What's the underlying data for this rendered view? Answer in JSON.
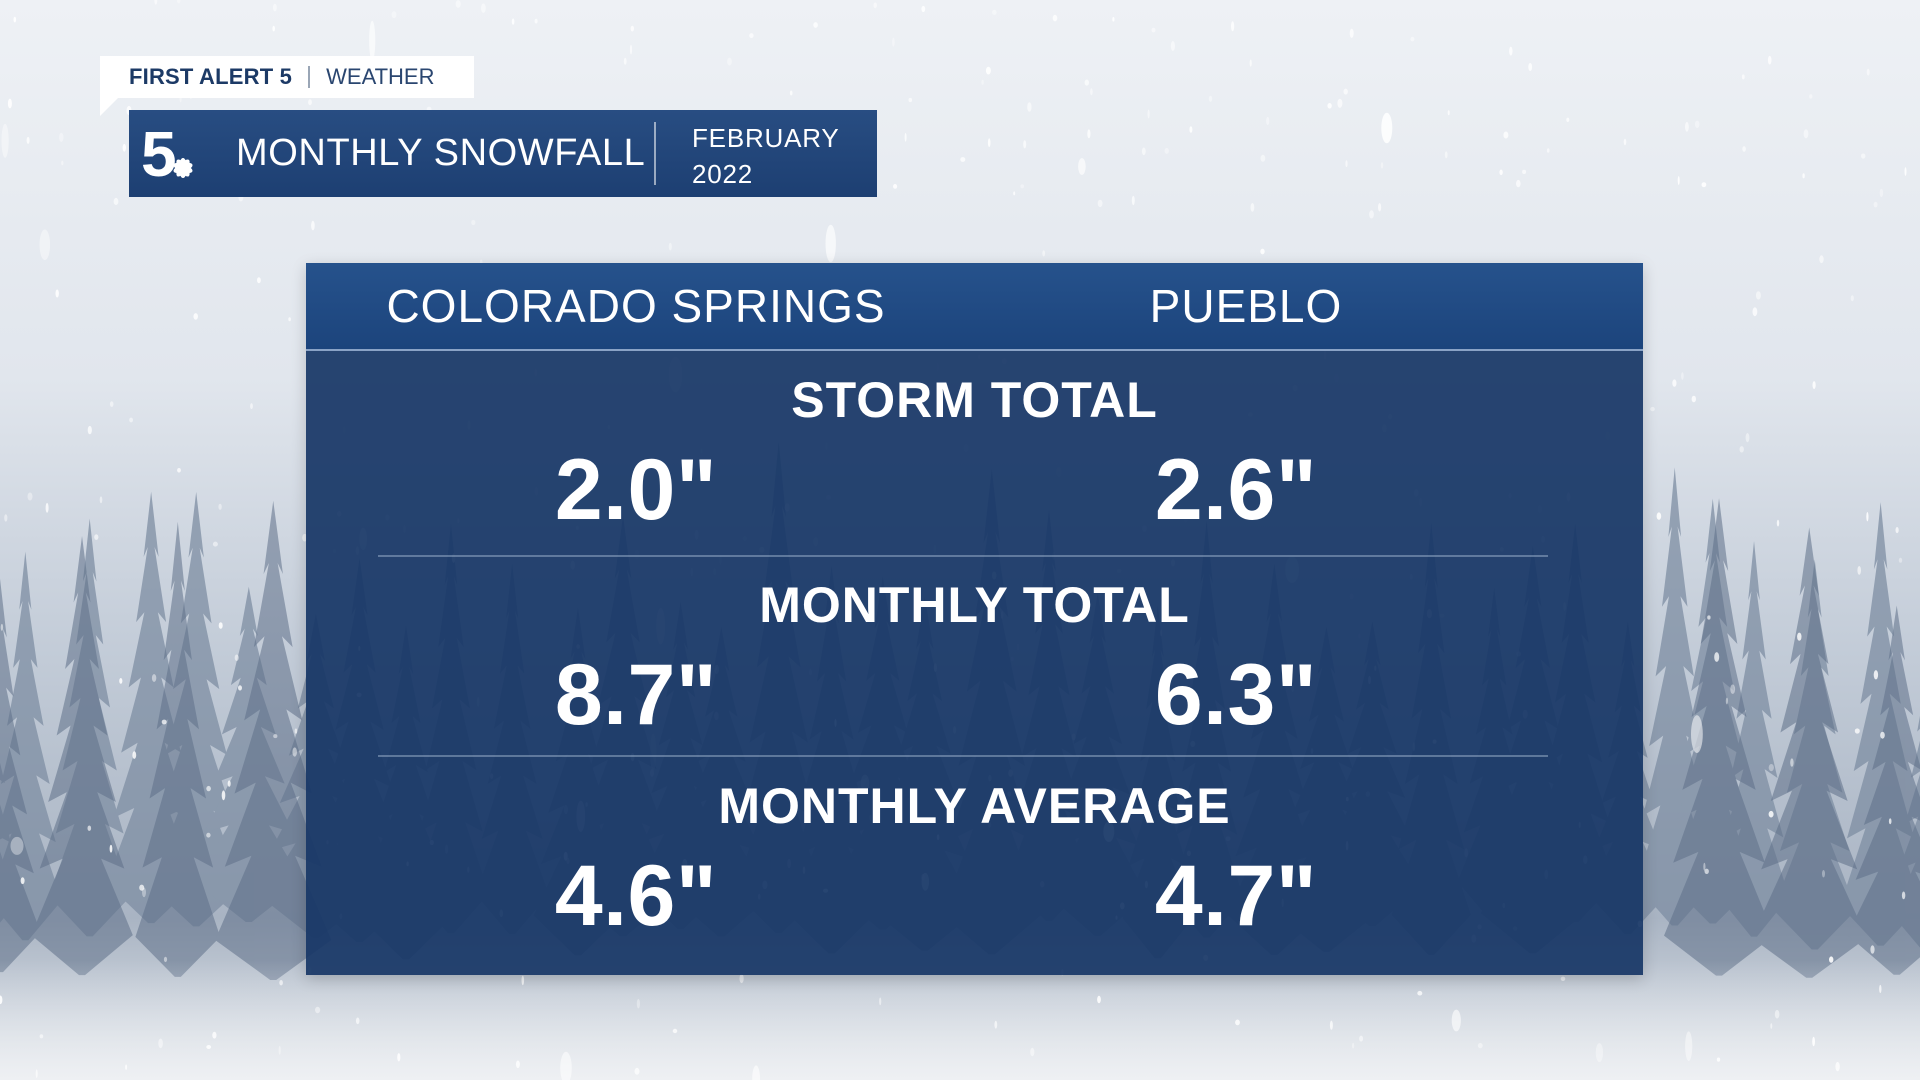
{
  "brand": {
    "strong": "FIRST ALERT 5",
    "light": "WEATHER"
  },
  "title_bar": {
    "logo_icon": "nbc5-peacock-logo",
    "title": "MONTHLY SNOWFALL",
    "date_line1": "FEBRUARY",
    "date_line2": "2022"
  },
  "table": {
    "columns": [
      "COLORADO SPRINGS",
      "PUEBLO"
    ],
    "rows": [
      {
        "label": "STORM TOTAL",
        "values": [
          "2.0\"",
          "2.6\""
        ]
      },
      {
        "label": "MONTHLY TOTAL",
        "values": [
          "8.7\"",
          "6.3\""
        ]
      },
      {
        "label": "MONTHLY AVERAGE",
        "values": [
          "4.6\"",
          "4.7\""
        ]
      }
    ]
  },
  "colors": {
    "panel": "#183766",
    "header": "#26528c",
    "title_bar": "#284d82",
    "text": "#ffffff",
    "brand_text": "#1c3a66"
  }
}
